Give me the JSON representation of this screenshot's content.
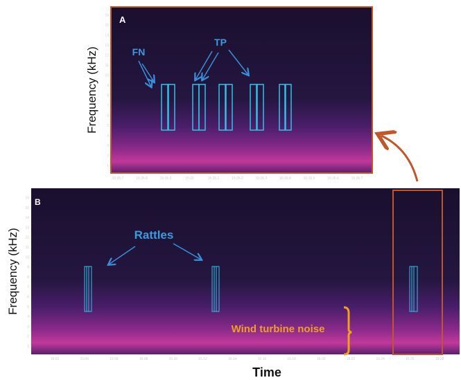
{
  "panel_a": {
    "label": "A",
    "y_axis_label": "Frequency (kHz)",
    "yticks": [
      "1",
      "2",
      "3",
      "4",
      "5",
      "6",
      "7",
      "8",
      "9",
      "10",
      "11",
      "12",
      "13",
      "14",
      "15",
      "16"
    ],
    "xticks": [
      "15:25.7",
      "15:25.8",
      "15:25.9",
      "15:26",
      "15:26.1",
      "15:26.2",
      "15:26.3",
      "15:26.4",
      "15:26.5",
      "15:26.6",
      "15:26.7"
    ],
    "annotations": [
      "FN",
      "TP"
    ]
  },
  "panel_b": {
    "label": "B",
    "y_axis_label": "Frequency (kHz)",
    "x_axis_label": "Time",
    "yticks": [
      "1",
      "2",
      "3",
      "4",
      "5",
      "6",
      "7",
      "8",
      "9",
      "10",
      "11",
      "12",
      "13",
      "14",
      "15",
      "16"
    ],
    "xticks": [
      "15:02",
      "15:04",
      "15:06",
      "15:08",
      "15:10",
      "15:12",
      "15:14",
      "15:16",
      "15:18",
      "15:20",
      "15:22",
      "15:24",
      "15:26",
      "15:28"
    ],
    "annotations": [
      "Rattles",
      "Wind turbine noise"
    ]
  }
}
